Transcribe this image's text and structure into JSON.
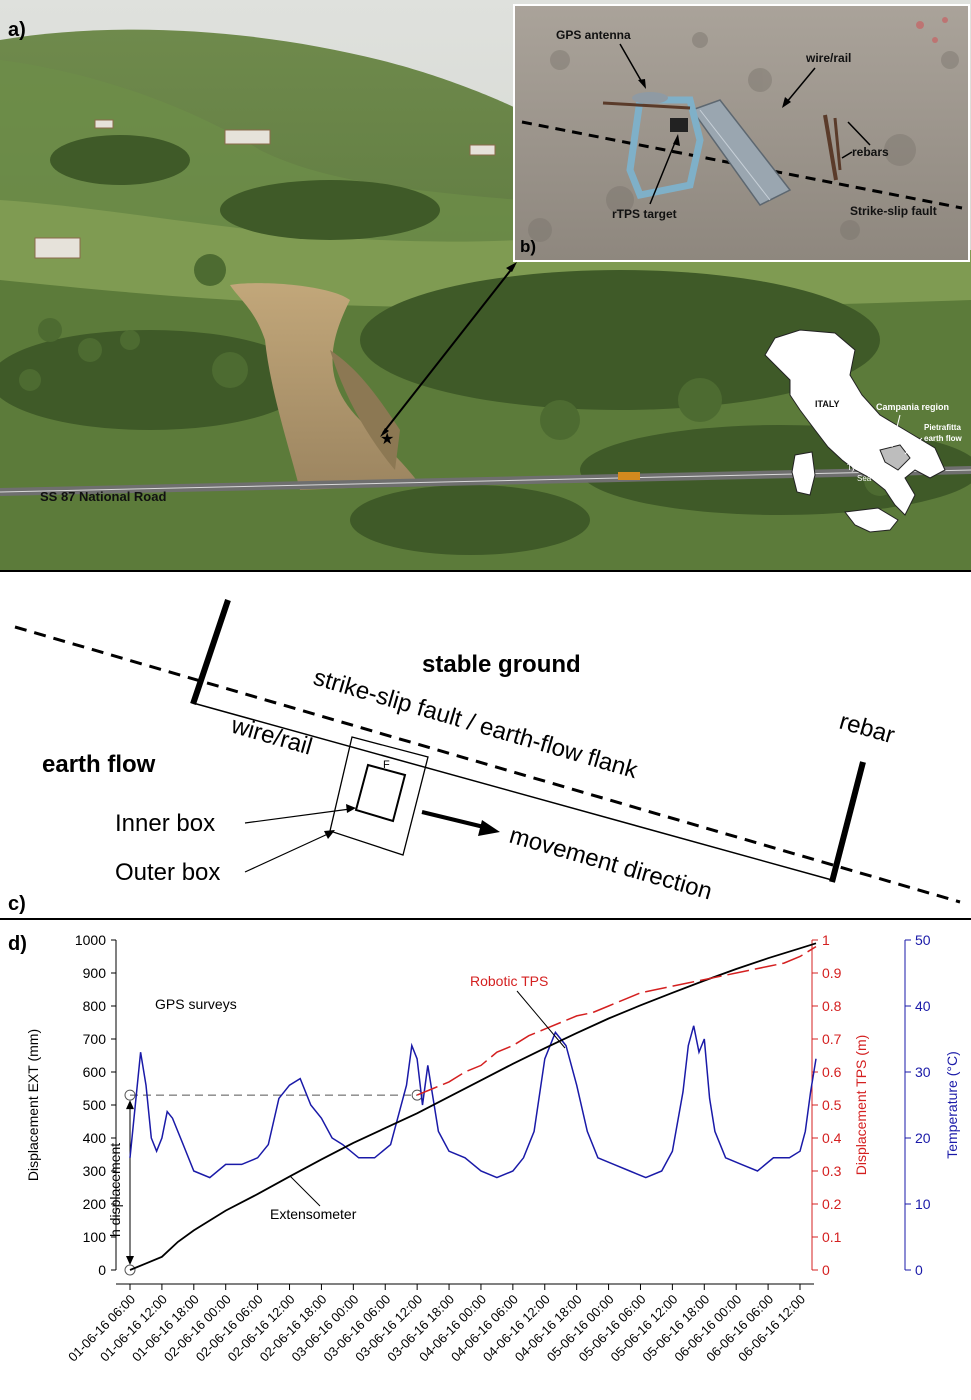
{
  "panel_a": {
    "label": "a)",
    "road_label": "SS 87 National Road",
    "inset_map": {
      "country": "ITALY",
      "region": "Campania region",
      "site_line1": "Pietrafitta",
      "site_line2": "earth flow",
      "sea_line1": "Tyrrhenian",
      "sea_line2": "Sea"
    }
  },
  "panel_b": {
    "label": "b)",
    "gps_antenna": "GPS antenna",
    "wire_rail": "wire/rail",
    "rebars": "rebars",
    "rtps_target": "rTPS target",
    "strike_slip_fault": "Strike-slip fault"
  },
  "panel_c": {
    "label": "c)",
    "stable_ground": "stable ground",
    "earth_flow": "earth flow",
    "fault_label": "strike-slip fault / earth-flow flank",
    "wire_rail": "wire/rail",
    "rebar": "rebar",
    "inner_box": "Inner box",
    "outer_box": "Outer box",
    "movement_direction": "movement direction",
    "f_mark": "F"
  },
  "panel_d": {
    "label": "d)",
    "annotations": {
      "gps_surveys": "GPS surveys",
      "robotic_tps": "Robotic TPS",
      "extensometer": "Extensometer",
      "h_displacement": "h displacement"
    }
  },
  "chart_data": {
    "type": "line",
    "ylabel": "Displacement EXT (mm)",
    "y2label": "Displacement TPS (m)",
    "y3label": "Temperature (°C)",
    "ylim": [
      0,
      1000
    ],
    "y2lim": [
      0,
      1
    ],
    "y3lim": [
      0,
      50
    ],
    "yticks": [
      "0",
      "100",
      "200",
      "300",
      "400",
      "500",
      "600",
      "700",
      "800",
      "900",
      "1000"
    ],
    "y2ticks": [
      "0",
      "0.1",
      "0.2",
      "0.3",
      "0.4",
      "0.5",
      "0.6",
      "0.7",
      "0.8",
      "0.9",
      "1"
    ],
    "y3ticks": [
      "0",
      "10",
      "20",
      "30",
      "40",
      "50"
    ],
    "xticks": [
      "01-06-16 06:00",
      "01-06-16 12:00",
      "01-06-16 18:00",
      "02-06-16 00:00",
      "02-06-16 06:00",
      "02-06-16 12:00",
      "02-06-16 18:00",
      "03-06-16 00:00",
      "03-06-16 06:00",
      "03-06-16 12:00",
      "03-06-16 18:00",
      "04-06-16 00:00",
      "04-06-16 06:00",
      "04-06-16 12:00",
      "04-06-16 18:00",
      "05-06-16 00:00",
      "05-06-16 06:00",
      "05-06-16 12:00",
      "05-06-16 18:00",
      "06-06-16 00:00",
      "06-06-16 06:00",
      "06-06-16 12:00"
    ],
    "grid": false,
    "colors": {
      "extensometer": "#000000",
      "tps": "#d42020",
      "temperature": "#1a1aa8",
      "axis_tps": "#d42020",
      "axis_temp": "#1a1aa8"
    },
    "series": [
      {
        "name": "Extensometer",
        "axis": "left",
        "x_hours": [
          0,
          3,
          6,
          9,
          12,
          18,
          24,
          30,
          36,
          42,
          48,
          54,
          60,
          66,
          72,
          78,
          84,
          90,
          96,
          102,
          108,
          114,
          120,
          126,
          129
        ],
        "values": [
          0,
          20,
          40,
          85,
          120,
          180,
          230,
          283,
          335,
          385,
          430,
          475,
          525,
          575,
          625,
          672,
          718,
          762,
          802,
          840,
          877,
          912,
          945,
          975,
          990
        ]
      },
      {
        "name": "Robotic TPS",
        "axis": "right",
        "x_hours": [
          54,
          57,
          60,
          63,
          66,
          69,
          72,
          75,
          78,
          81,
          84,
          87,
          90,
          93,
          96,
          99,
          102,
          105,
          108,
          111,
          114,
          117,
          120,
          123,
          126,
          129
        ],
        "values": [
          0.53,
          0.55,
          0.57,
          0.6,
          0.62,
          0.66,
          0.68,
          0.71,
          0.73,
          0.75,
          0.77,
          0.78,
          0.8,
          0.82,
          0.84,
          0.85,
          0.86,
          0.87,
          0.88,
          0.89,
          0.9,
          0.91,
          0.92,
          0.93,
          0.95,
          0.98
        ]
      },
      {
        "name": "Temperature",
        "axis": "right2",
        "x_hours": [
          0,
          1,
          2,
          3,
          4,
          5,
          6,
          7,
          8,
          10,
          12,
          15,
          18,
          21,
          24,
          26,
          28,
          30,
          32,
          34,
          36,
          38,
          40,
          43,
          46,
          49,
          52,
          53,
          54,
          55,
          56,
          57,
          58,
          60,
          63,
          66,
          69,
          72,
          74,
          76,
          78,
          80,
          82,
          84,
          86,
          88,
          91,
          94,
          97,
          100,
          102,
          104,
          105,
          106,
          107,
          108,
          109,
          110,
          112,
          115,
          118,
          121,
          124,
          126,
          127,
          128,
          129
        ],
        "values": [
          17,
          25,
          33,
          28,
          20,
          18,
          20,
          24,
          23,
          19,
          15,
          14,
          16,
          16,
          17,
          19,
          26,
          28,
          29,
          25,
          23,
          20,
          19,
          17,
          17,
          19,
          28,
          34,
          32,
          25,
          31,
          26,
          21,
          18,
          17,
          15,
          14,
          15,
          17,
          21,
          32,
          36,
          34,
          28,
          21,
          17,
          16,
          15,
          14,
          15,
          18,
          27,
          34,
          37,
          33,
          35,
          26,
          21,
          17,
          16,
          15,
          17,
          17,
          18,
          21,
          27,
          32
        ]
      }
    ]
  }
}
